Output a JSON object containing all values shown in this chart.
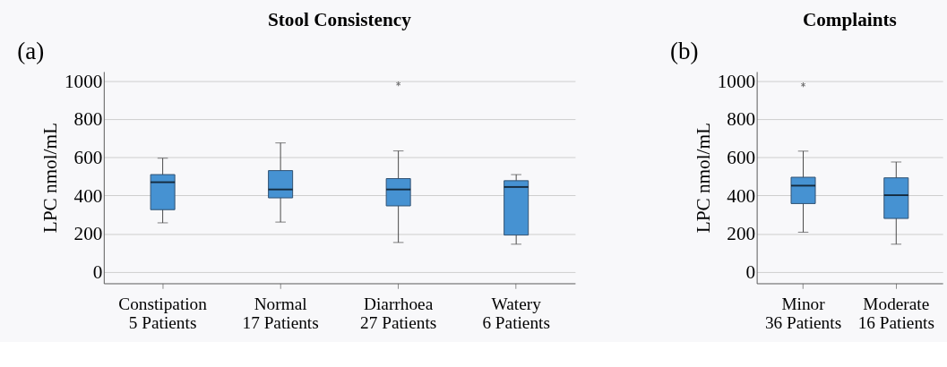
{
  "chart_data": [
    {
      "type": "box",
      "title": "Stool Consistency",
      "ylabel": "LPC  nmol/mL",
      "annotations": [
        "(a)"
      ],
      "categories": [
        "Constipation\n5 Patients",
        "Normal\n17 Patients",
        "Diarrhoea\n27 Patients",
        "Watery\n6 Patients"
      ],
      "color": "#4692d2",
      "ylim": [
        -60,
        1050
      ],
      "yticks": [
        0,
        200,
        400,
        600,
        800,
        1000
      ],
      "grid": "y",
      "boxes": [
        {
          "low": 257,
          "q1": 326,
          "median": 470,
          "q3": 510,
          "high": 596
        },
        {
          "low": 261,
          "q1": 388,
          "median": 432,
          "q3": 531,
          "high": 676
        },
        {
          "low": 154,
          "q1": 346,
          "median": 432,
          "q3": 489,
          "high": 634,
          "outliers": [
            986
          ]
        },
        {
          "low": 145,
          "q1": 193,
          "median": 445,
          "q3": 478,
          "high": 510
        }
      ]
    },
    {
      "type": "box",
      "title": "Complaints",
      "ylabel": "LPC  nmol/mL",
      "annotations": [
        "(b)"
      ],
      "categories": [
        "Minor\n36 Patients",
        "Moderate\n16 Patients"
      ],
      "color": "#4692d2",
      "ylim": [
        -60,
        1050
      ],
      "yticks": [
        0,
        200,
        400,
        600,
        800,
        1000
      ],
      "grid": "y",
      "boxes": [
        {
          "low": 208,
          "q1": 358,
          "median": 452,
          "q3": 496,
          "high": 633,
          "outliers": [
            981
          ]
        },
        {
          "low": 145,
          "q1": 280,
          "median": 402,
          "q3": 493,
          "high": 576
        }
      ]
    }
  ]
}
